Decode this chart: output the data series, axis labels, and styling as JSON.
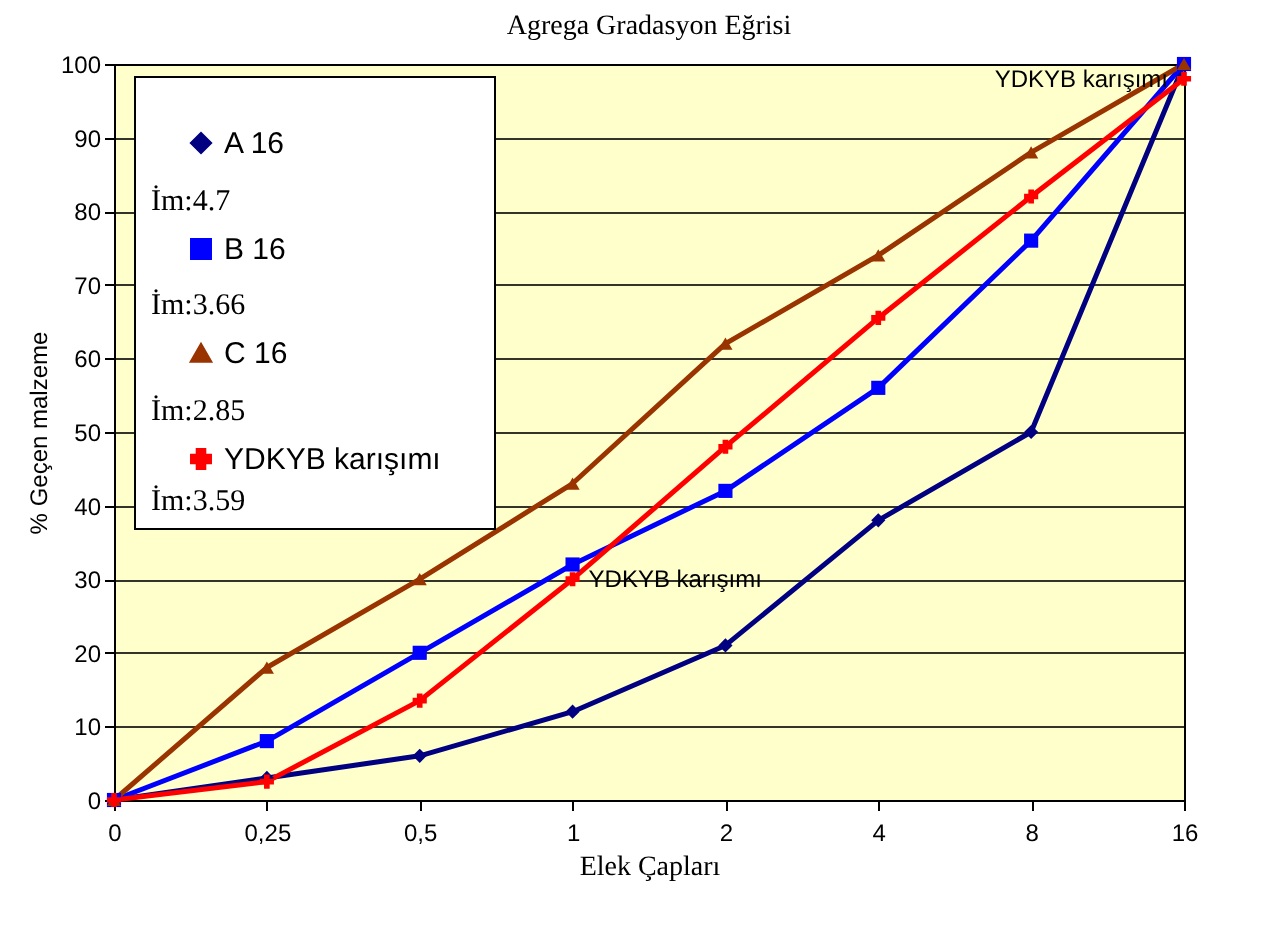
{
  "chart_data": {
    "type": "line",
    "title": "Agrega Gradasyon Eğrisi",
    "xlabel": "Elek Çapları",
    "ylabel": "% Geçen malzeme",
    "categories": [
      "0",
      "0,25",
      "0,5",
      "1",
      "2",
      "4",
      "8",
      "16"
    ],
    "series": [
      {
        "name": "A 16",
        "color": "#000080",
        "marker": "diamond",
        "values": [
          0,
          3,
          6,
          12,
          21,
          38,
          50,
          100
        ]
      },
      {
        "name": "B 16",
        "color": "#0000ff",
        "marker": "square",
        "values": [
          0,
          8,
          20,
          32,
          42,
          56,
          76,
          100
        ]
      },
      {
        "name": "C 16",
        "color": "#993300",
        "marker": "triangle",
        "values": [
          0,
          18,
          30,
          43,
          62,
          74,
          88,
          100
        ]
      },
      {
        "name": "YDKYB karışımı",
        "color": "#ff0000",
        "marker": "cross",
        "values": [
          0,
          2.5,
          13.5,
          30,
          48,
          65.5,
          82,
          98
        ]
      }
    ],
    "ylim": [
      0,
      100
    ],
    "yticks": [
      0,
      10,
      20,
      30,
      40,
      50,
      60,
      70,
      80,
      90,
      100
    ],
    "grid": "y",
    "legend": "top left",
    "line_style": "solid",
    "annotations": [
      "İm:4.7",
      "İm:3.66",
      "İm:2.85",
      "İm:3.59",
      {
        "text": "YDKYB karışımı",
        "x": "1",
        "y": 30
      },
      {
        "text": "YDKYB karışımı",
        "x": "16",
        "y": 98
      }
    ]
  }
}
